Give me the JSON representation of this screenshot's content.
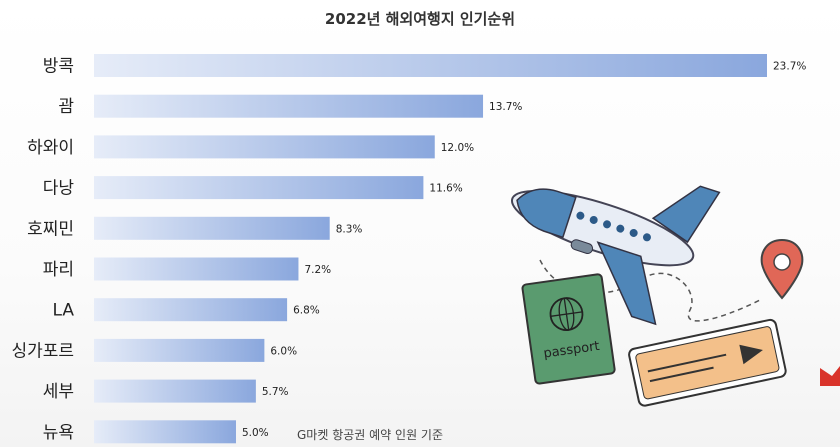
{
  "title": "2022년 해외여행지 인기순위",
  "source": "G마켓 항공권 예약 인원 기준",
  "passport_text": "passport",
  "colors": {
    "bar_start": "#e6ecf8",
    "bar_end": "#8aa7dd",
    "text": "#222222"
  },
  "chart_data": {
    "type": "bar",
    "orientation": "horizontal",
    "title": "2022년 해외여행지 인기순위",
    "categories": [
      "방콕",
      "괌",
      "하와이",
      "다낭",
      "호찌민",
      "파리",
      "LA",
      "싱가포르",
      "세부",
      "뉴욕"
    ],
    "values": [
      23.7,
      13.7,
      12.0,
      11.6,
      8.3,
      7.2,
      6.8,
      6.0,
      5.7,
      5.0
    ],
    "value_labels": [
      "23.7%",
      "13.7%",
      "12.0%",
      "11.6%",
      "8.3%",
      "7.2%",
      "6.8%",
      "6.0%",
      "5.7%",
      "5.0%"
    ],
    "unit": "%",
    "grid": false,
    "legend": "none"
  }
}
